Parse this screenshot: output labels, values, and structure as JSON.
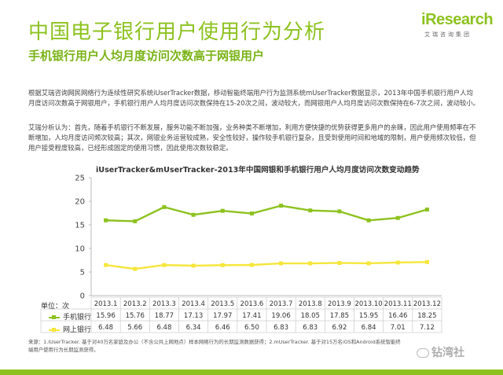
{
  "header": {
    "title": "中国电子银行用户使用行为分析",
    "subtitle": "手机银行用户人均月度访问次数高于网银用户"
  },
  "logo": {
    "brand_i": "i",
    "brand_rest": "Research",
    "sub": "艾瑞咨询集团"
  },
  "paragraphs": {
    "p1": "根据艾瑞咨询网民网络行为连续性研究系统iUserTracker数据，移动智能终端用户行为监测系统mUserTracker数据显示，2013年中国手机银行用户人均月度访问次数高于网银用户，手机银行用户人均月度访问次数保持在15-20次之间，波动较大，而网银用户人均月度访问次数保持在6-7次之间，波动较小。",
    "p2": "艾瑞分析认为：首先，随着手机银行不断发展，服务功能不断加强，业务种类不断增加，利用方便快捷的优势获得更多用户的亲睐，因此用户使用频率在不断增加，人均月度访问频次较高；其次，网银业务运营较成熟，安全性较好，操作较手机银行复杂，且受到使用时间和地域的限制，用户使用频次较低，但用户接受程度较高，已经形成固定的使用习惯，因此使用次数较稳定。"
  },
  "footnote": "来源：1.iUserTracker. 基于对40万名家庭及办公（不含公共上网地点）样本网络行为的长期监测数据获得；2.mUserTracker. 基于对15万名iOS和Android系统智能终端用户使用行为长期监测获得。",
  "watermark": "钻湾社",
  "chart_data": {
    "type": "line",
    "title": "iUserTracker&mUserTracker-2013年中国网银和手机银行用户人均月度访问次数变动趋势",
    "unit_label": "单位：次",
    "categories": [
      "2013.1",
      "2013.2",
      "2013.3",
      "2013.4",
      "2013.5",
      "2013.6",
      "2013.7",
      "2013.8",
      "2013.9",
      "2013.10",
      "2013.11",
      "2013.12"
    ],
    "ylim": [
      0,
      25
    ],
    "yticks": [
      0,
      5,
      10,
      15,
      20,
      25
    ],
    "grid": false,
    "legend": "table-below",
    "series": [
      {
        "name": "手机银行",
        "color": "#8dc21f",
        "values": [
          15.96,
          15.76,
          18.77,
          17.13,
          17.97,
          17.41,
          19.06,
          18.05,
          17.85,
          15.95,
          16.46,
          18.25
        ],
        "labels": [
          "15.96",
          "15.76",
          "18.77",
          "17.13",
          "17.97",
          "17.41",
          "19.06",
          "18.05",
          "17.85",
          "15.95",
          "16.46",
          "18.25"
        ]
      },
      {
        "name": "网上银行",
        "color": "#f5e63b",
        "values": [
          6.48,
          5.66,
          6.48,
          6.34,
          6.46,
          6.5,
          6.83,
          6.83,
          6.92,
          6.84,
          7.01,
          7.12
        ],
        "labels": [
          "6.48",
          "5.66",
          "6.48",
          "6.34",
          "6.46",
          "6.50",
          "6.83",
          "6.83",
          "6.92",
          "6.84",
          "7.01",
          "7.12"
        ]
      }
    ]
  }
}
